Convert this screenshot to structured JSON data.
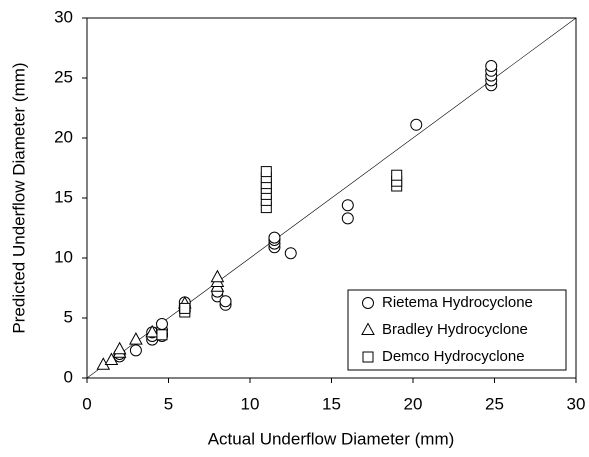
{
  "chart_data": {
    "type": "scatter",
    "x_label": "Actual Underflow Diameter (mm)",
    "y_label": "Predicted Underflow Diameter (mm)",
    "xlim": [
      0,
      30
    ],
    "ylim": [
      0,
      30
    ],
    "xticks": [
      0,
      5,
      10,
      15,
      20,
      25,
      30
    ],
    "yticks": [
      0,
      5,
      10,
      15,
      20,
      25,
      30
    ],
    "grid": false,
    "legend": "lower right",
    "series": [
      {
        "name": "Rietema Hydrocyclone",
        "marker": "circle",
        "color": "#000000",
        "x": [
          3,
          4,
          4,
          4,
          4.6,
          4.6,
          4.6,
          4.6,
          2,
          2,
          6,
          6,
          6,
          8,
          8,
          8.5,
          8.5,
          11.5,
          11.5,
          11.5,
          11.5,
          12.5,
          16,
          16,
          20.2,
          24.8,
          24.8,
          24.8,
          24.8,
          24.8
        ],
        "y": [
          2.3,
          3.2,
          3.5,
          3.8,
          3.5,
          3.7,
          4.0,
          4.5,
          1.8,
          2.0,
          5.6,
          6.0,
          6.3,
          6.8,
          7.2,
          6.1,
          6.4,
          10.9,
          11.2,
          11.5,
          11.7,
          10.4,
          13.3,
          14.4,
          21.1,
          24.4,
          24.8,
          25.2,
          25.6,
          26.0
        ]
      },
      {
        "name": "Bradley Hydrocyclone",
        "marker": "triangle",
        "color": "#000000",
        "x": [
          1,
          1.5,
          2,
          2,
          3,
          4,
          6,
          8,
          8,
          8
        ],
        "y": [
          1.1,
          1.5,
          2.1,
          2.4,
          3.2,
          3.8,
          6.2,
          7.6,
          8.0,
          8.4
        ]
      },
      {
        "name": "Demco Hydrocyclone",
        "marker": "square",
        "color": "#000000",
        "x": [
          11,
          11,
          11,
          11,
          11,
          11,
          11,
          19,
          19,
          19,
          6,
          6,
          4.6
        ],
        "y": [
          14.2,
          14.8,
          15.3,
          15.8,
          16.2,
          16.7,
          17.2,
          16.0,
          16.4,
          16.9,
          5.5,
          5.8,
          3.6
        ]
      }
    ]
  }
}
